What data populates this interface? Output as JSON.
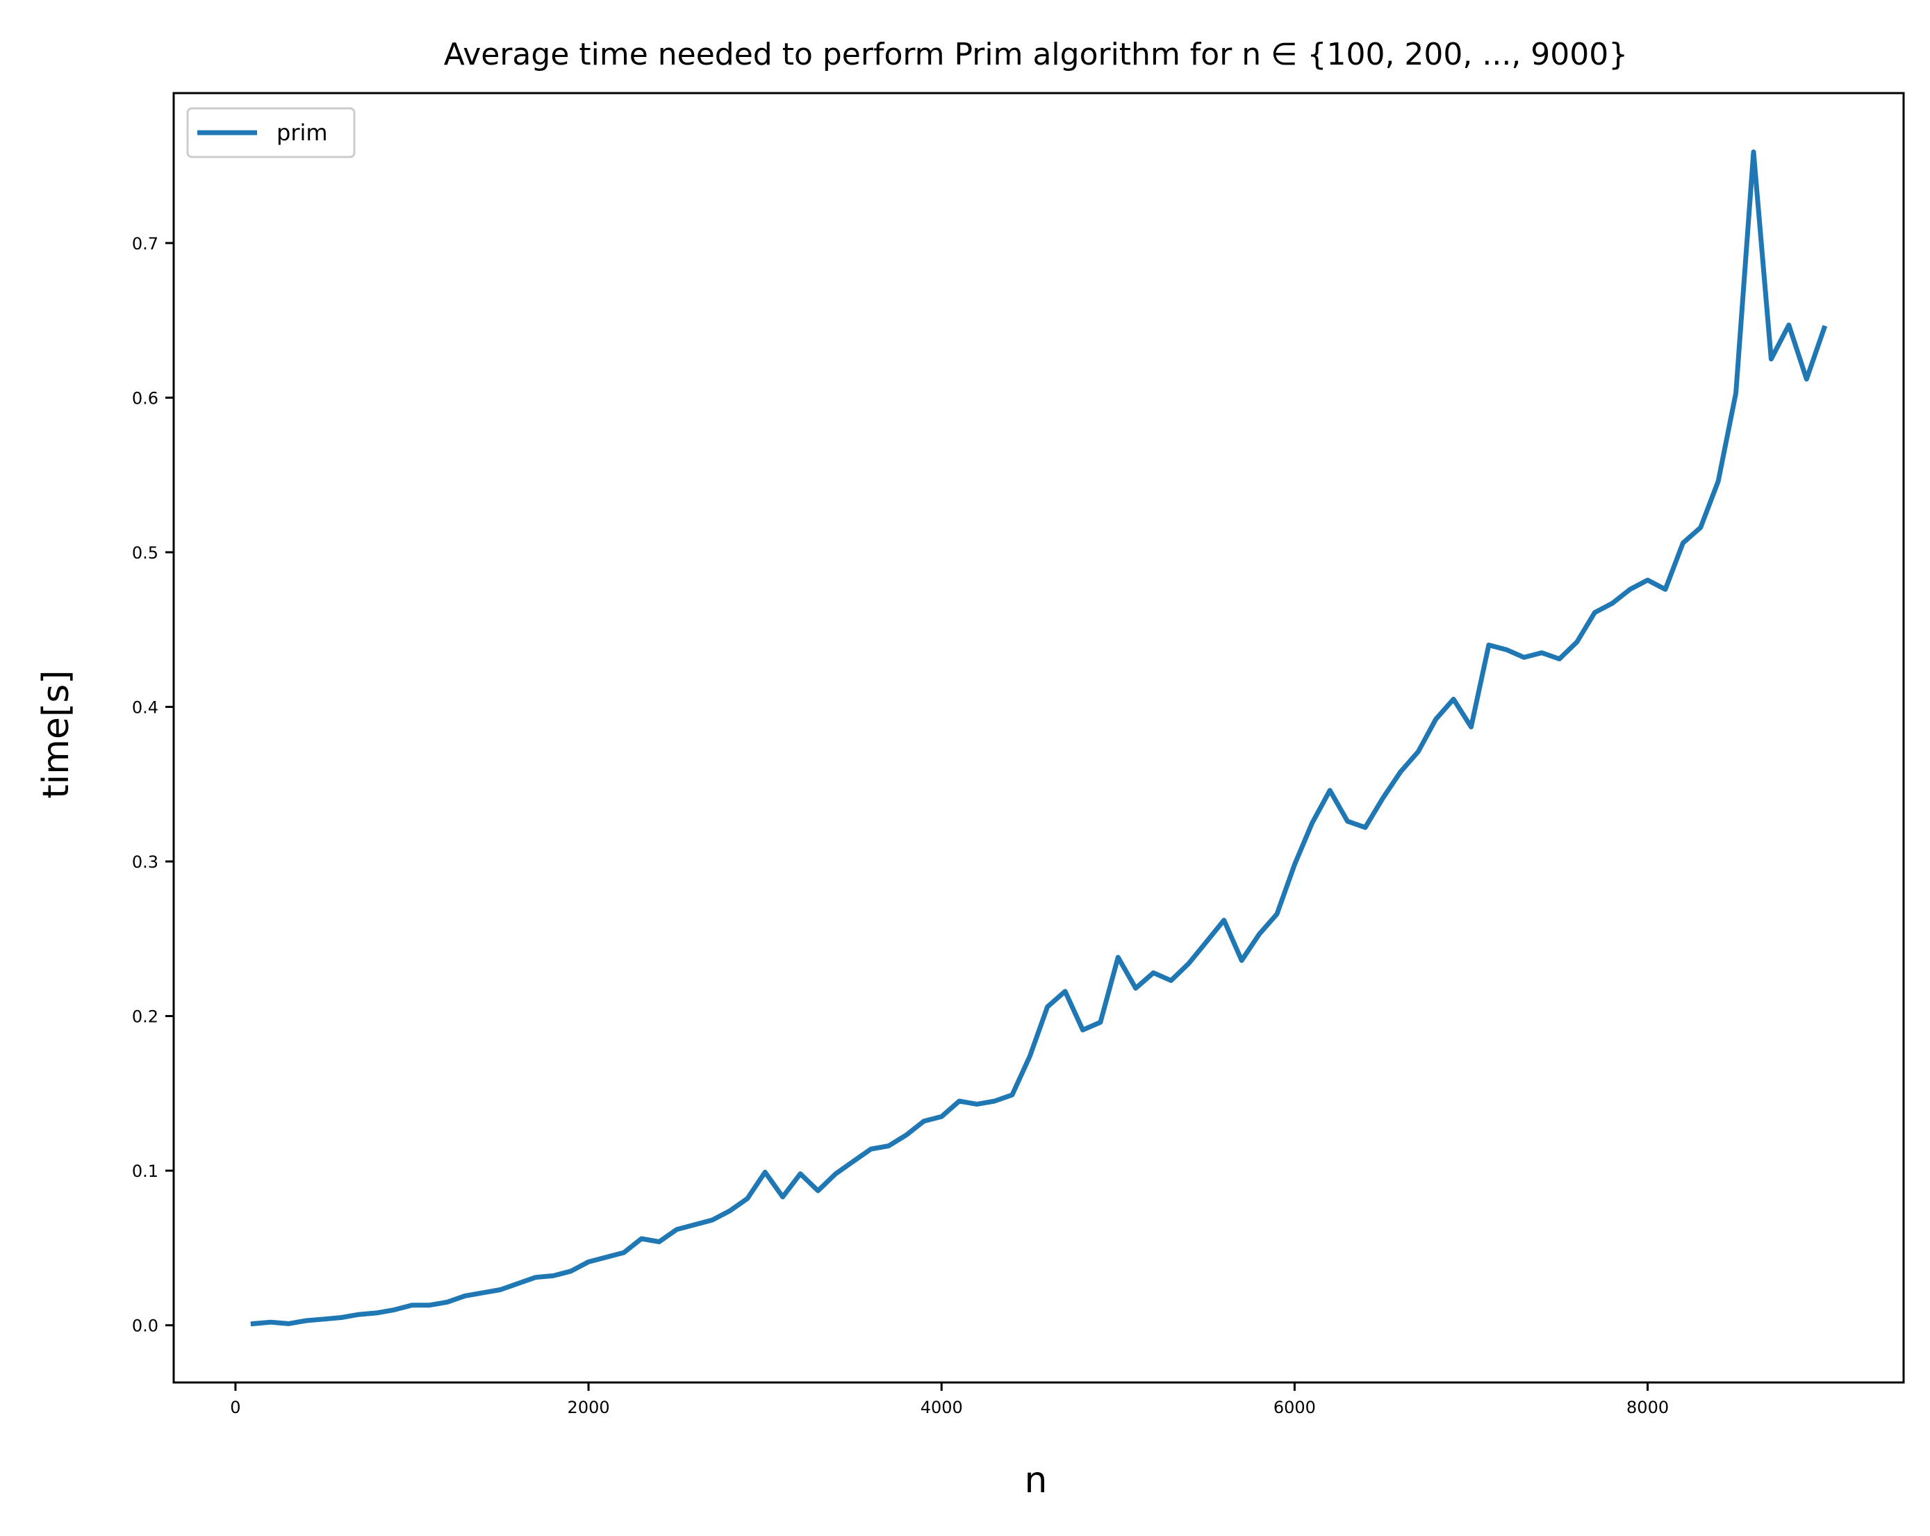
{
  "chart_data": {
    "type": "line",
    "title": "Average time needed to perform Prim algorithm for n ∈ {100, 200, ..., 9000}",
    "xlabel": "n",
    "ylabel": "time[s]",
    "xlim": [
      -350,
      9450
    ],
    "ylim": [
      -0.037,
      0.797
    ],
    "xticks": [
      0,
      2000,
      4000,
      6000,
      8000
    ],
    "yticks": [
      0.0,
      0.1,
      0.2,
      0.3,
      0.4,
      0.5,
      0.6,
      0.7
    ],
    "xtick_labels": [
      "0",
      "2000",
      "4000",
      "6000",
      "8000"
    ],
    "ytick_labels": [
      "0.0",
      "0.1",
      "0.2",
      "0.3",
      "0.4",
      "0.5",
      "0.6",
      "0.7"
    ],
    "grid": false,
    "legend": "top-left",
    "series": [
      {
        "name": "prim",
        "color": "#1f77b4",
        "x": [
          100,
          200,
          300,
          400,
          500,
          600,
          700,
          800,
          900,
          1000,
          1100,
          1200,
          1300,
          1400,
          1500,
          1600,
          1700,
          1800,
          1900,
          2000,
          2100,
          2200,
          2300,
          2400,
          2500,
          2600,
          2700,
          2800,
          2900,
          3000,
          3100,
          3200,
          3300,
          3400,
          3500,
          3600,
          3700,
          3800,
          3900,
          4000,
          4100,
          4200,
          4300,
          4400,
          4500,
          4600,
          4700,
          4800,
          4900,
          5000,
          5100,
          5200,
          5300,
          5400,
          5500,
          5600,
          5700,
          5800,
          5900,
          6000,
          6100,
          6200,
          6300,
          6400,
          6500,
          6600,
          6700,
          6800,
          6900,
          7000,
          7100,
          7200,
          7300,
          7400,
          7500,
          7600,
          7700,
          7800,
          7900,
          8000,
          8100,
          8200,
          8300,
          8400,
          8500,
          8600,
          8700,
          8800,
          8900,
          9000
        ],
        "y": [
          0.001,
          0.002,
          0.001,
          0.003,
          0.004,
          0.005,
          0.007,
          0.008,
          0.01,
          0.013,
          0.013,
          0.015,
          0.019,
          0.021,
          0.023,
          0.027,
          0.031,
          0.032,
          0.035,
          0.041,
          0.044,
          0.047,
          0.056,
          0.054,
          0.062,
          0.065,
          0.068,
          0.074,
          0.082,
          0.099,
          0.083,
          0.098,
          0.087,
          0.098,
          0.106,
          0.114,
          0.116,
          0.123,
          0.132,
          0.135,
          0.145,
          0.143,
          0.145,
          0.149,
          0.174,
          0.206,
          0.216,
          0.191,
          0.196,
          0.238,
          0.218,
          0.228,
          0.223,
          0.234,
          0.248,
          0.262,
          0.236,
          0.253,
          0.266,
          0.298,
          0.325,
          0.346,
          0.326,
          0.322,
          0.341,
          0.358,
          0.371,
          0.392,
          0.405,
          0.387,
          0.44,
          0.437,
          0.432,
          0.435,
          0.431,
          0.442,
          0.461,
          0.467,
          0.476,
          0.482,
          0.476,
          0.506,
          0.516,
          0.546,
          0.603,
          0.759,
          0.625,
          0.647,
          0.612,
          0.645
        ]
      }
    ]
  }
}
